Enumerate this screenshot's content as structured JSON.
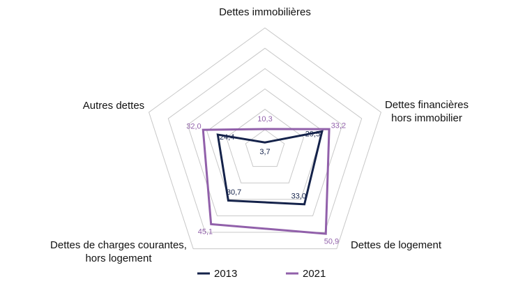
{
  "chart_data": {
    "type": "radar",
    "categories": [
      [
        "Dettes immobilières"
      ],
      [
        "Dettes financières",
        "hors immobilier"
      ],
      [
        "Dettes de logement"
      ],
      [
        "Dettes de charges courantes,",
        "hors logement"
      ],
      [
        "Autres dettes"
      ]
    ],
    "series": [
      {
        "name": "2013",
        "color": "#14224a",
        "values": [
          3.7,
          29.5,
          33.0,
          30.7,
          24.4
        ],
        "value_labels": [
          "3,7",
          "29,5",
          "33,0",
          "30,7",
          "24,4"
        ]
      },
      {
        "name": "2021",
        "color": "#9160aa",
        "values": [
          10.3,
          33.2,
          50.9,
          45.1,
          32.0
        ],
        "value_labels": [
          "10,3",
          "33,2",
          "50,9",
          "45,1",
          "32,0"
        ]
      }
    ],
    "rlim": [
      0,
      60
    ],
    "rticks": [
      10,
      20,
      30,
      40,
      50,
      60
    ],
    "grid": true,
    "legend": "bottom"
  }
}
